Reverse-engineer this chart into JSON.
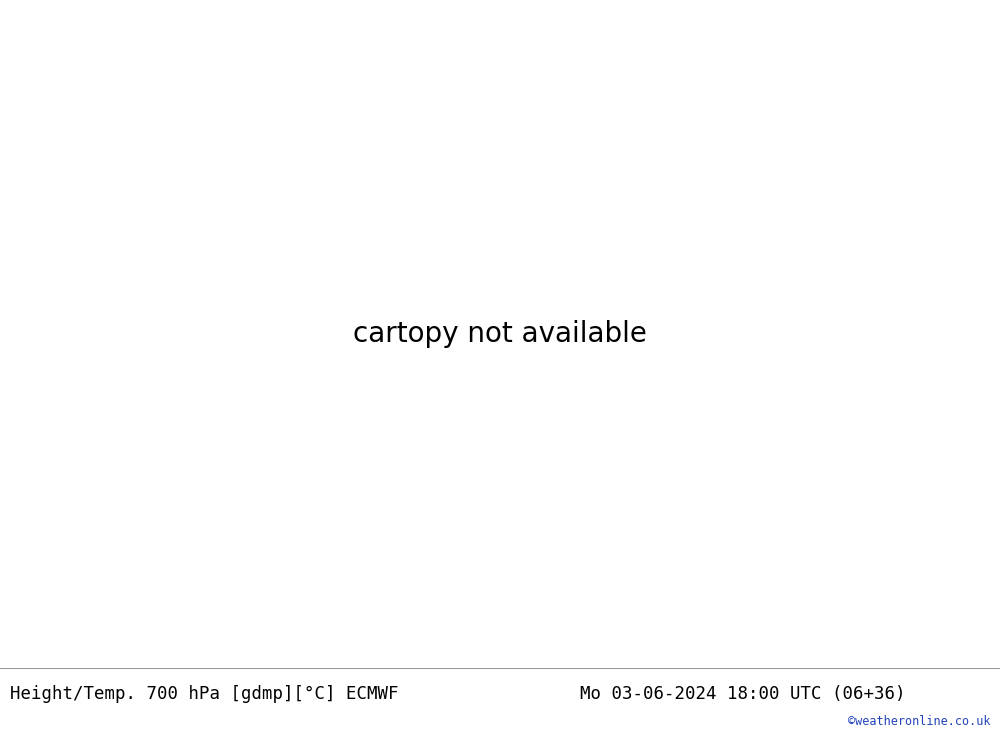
{
  "title_left": "Height/Temp. 700 hPa [gdmp][°C] ECMWF",
  "title_right": "Mo 03-06-2024 18:00 UTC (06+36)",
  "watermark": "©weatheronline.co.uk",
  "land_color": "#c8f0a0",
  "sea_color": "#e8e8e8",
  "lake_color": "#d0d0d0",
  "border_color": "#aaaaaa",
  "coast_color": "#888888",
  "fig_width": 10.0,
  "fig_height": 7.33,
  "dpi": 100,
  "bottom_bar_color": "#e0e0e0",
  "bottom_bar_height": 0.088,
  "title_fontsize": 12.5,
  "watermark_color": "#2244bb",
  "watermark_fontsize": 8.5,
  "map_extent": [
    -28,
    40,
    32,
    72
  ],
  "black_lw": 2.0,
  "black_thin_lw": 1.2,
  "orange_lw": 1.8,
  "magenta_lw": 1.8,
  "red_lw": 1.5
}
